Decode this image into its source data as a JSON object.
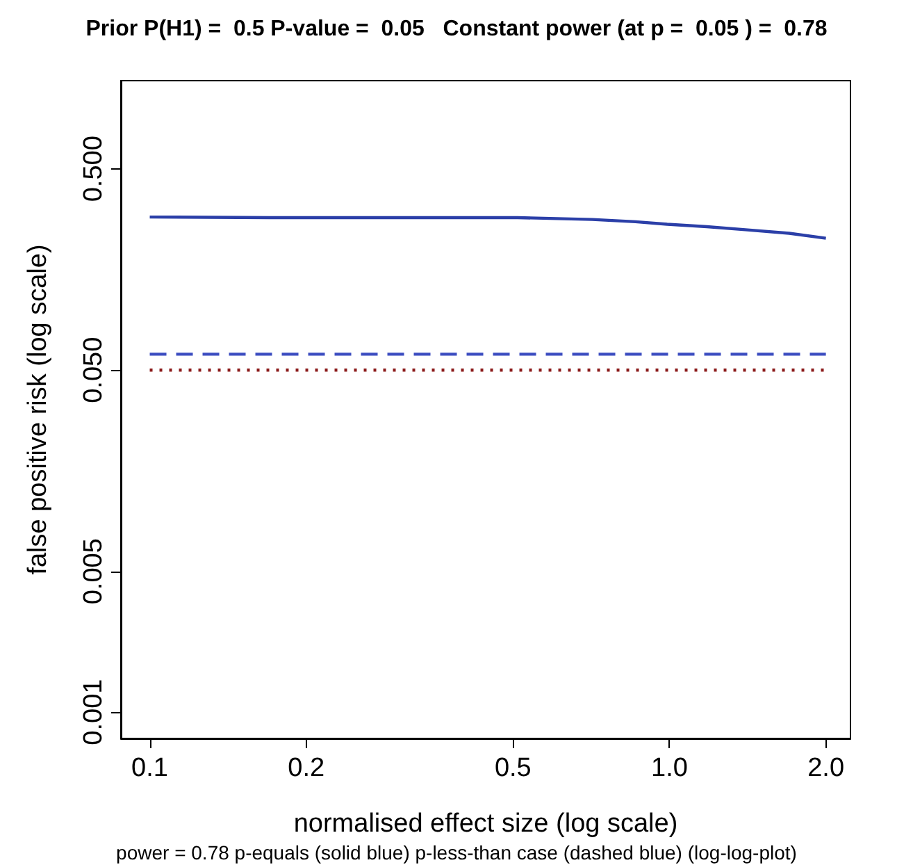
{
  "chart_data": {
    "type": "line",
    "title": "Prior P(H1) =  0.5 P-value =  0.05   Constant power (at p =  0.05 ) =  0.78",
    "xlabel": "normalised effect size (log scale)",
    "ylabel": "false positive risk (log scale)",
    "annotations": [
      "power = 0.78 p-equals (solid blue) p-less-than case (dashed blue) (log-log-plot)"
    ],
    "log": "xy",
    "xlim": [
      0.088,
      2.23
    ],
    "ylim": [
      0.00074,
      1.37
    ],
    "xticks": [
      0.1,
      0.2,
      0.5,
      {
        "value": 1,
        "label": "1.0"
      },
      {
        "value": 2,
        "label": "2.0"
      }
    ],
    "yticks": [
      0.001,
      0.005,
      {
        "value": 0.05,
        "label": "0.050"
      },
      {
        "value": 0.5,
        "label": "0.500"
      }
    ],
    "grid": false,
    "marker": "none",
    "series": [
      {
        "color": "#2b3fa8",
        "line_style": "solid",
        "x": [
          0.1,
          0.17,
          0.51,
          0.71,
          0.86,
          0.99,
          1.18,
          1.4,
          1.7,
          2.0
        ],
        "values": [
          0.288,
          0.286,
          0.286,
          0.28,
          0.273,
          0.265,
          0.258,
          0.249,
          0.239,
          0.226
        ]
      },
      {
        "color": "#3b4cc0",
        "line_style": "dashed",
        "x": [
          0.1,
          2.0
        ],
        "values": [
          0.06,
          0.06
        ]
      },
      {
        "color": "#8b1a1a",
        "line_style": "dotted",
        "x": [
          0.1,
          2.0
        ],
        "values": [
          0.05,
          0.05
        ]
      }
    ]
  }
}
